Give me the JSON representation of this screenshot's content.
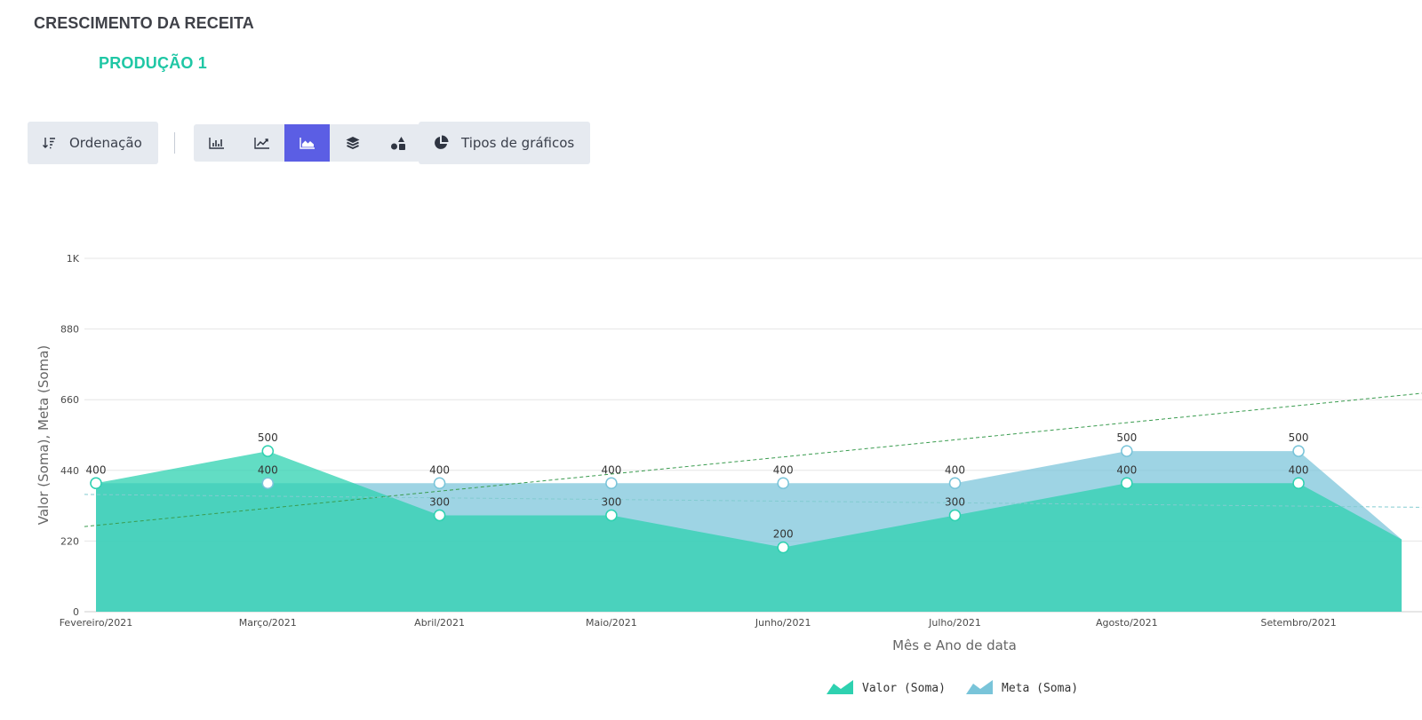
{
  "header": {
    "title": "CRESCIMENTO DA RECEITA",
    "subtitle": "PRODUÇÃO 1",
    "subtitle_color": "#1fc7a5"
  },
  "toolbar": {
    "sort_label": "Ordenação",
    "chart_types_label": "Tipos de gráficos",
    "type_buttons": [
      {
        "icon": "bar-chart-icon",
        "active": false
      },
      {
        "icon": "line-chart-icon",
        "active": false
      },
      {
        "icon": "area-chart-icon",
        "active": true
      },
      {
        "icon": "stacked-layers-icon",
        "active": false
      },
      {
        "icon": "shapes-icon",
        "active": false
      }
    ],
    "active_color": "#5b5ee4"
  },
  "chart_data": {
    "type": "area",
    "title": "",
    "xlabel": "Mês e Ano de data",
    "ylabel": "Valor (Soma), Meta (Soma)",
    "ylim": [
      0,
      1100
    ],
    "yticks": [
      0,
      220,
      440,
      660,
      880,
      1100
    ],
    "ytick_labels": [
      "0",
      "220",
      "440",
      "660",
      "880",
      "1K"
    ],
    "categories": [
      "Fevereiro/2021",
      "Março/2021",
      "Abril/2021",
      "Maio/2021",
      "Junho/2021",
      "Julho/2021",
      "Agosto/2021",
      "Setembro/2021"
    ],
    "series": [
      {
        "name": "Valor (Soma)",
        "values": [
          400,
          500,
          300,
          300,
          200,
          300,
          400,
          400
        ],
        "color": "#2ed1b0"
      },
      {
        "name": "Meta (Soma)",
        "values": [
          400,
          400,
          400,
          400,
          400,
          400,
          500,
          500
        ],
        "color": "#79c4d9"
      }
    ],
    "trendlines": [
      {
        "color": "#3a9c4f",
        "from": 265,
        "to": 680
      },
      {
        "color": "#82cbd0",
        "from": 365,
        "to": 325
      }
    ],
    "grid": true,
    "legend_position": "bottom-center"
  }
}
